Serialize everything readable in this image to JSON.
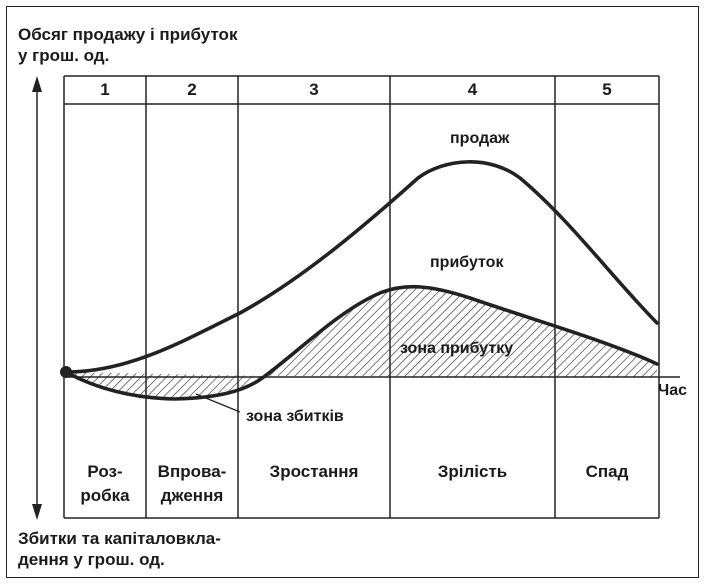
{
  "axes": {
    "y_top_label_line1": "Обсяг продажу і прибуток",
    "y_top_label_line2": "у грош. од.",
    "y_bottom_label_line1": "Збитки та капіталовкла-",
    "y_bottom_label_line2": "дення у грош. од.",
    "x_label": "Час"
  },
  "stages": [
    {
      "number": "1",
      "name_line1": "Роз-",
      "name_line2": "робка"
    },
    {
      "number": "2",
      "name_line1": "Впрова-",
      "name_line2": "дження"
    },
    {
      "number": "3",
      "name_line1": "Зростання",
      "name_line2": ""
    },
    {
      "number": "4",
      "name_line1": "Зрілість",
      "name_line2": ""
    },
    {
      "number": "5",
      "name_line1": "Спад",
      "name_line2": ""
    }
  ],
  "curves": {
    "sales_label": "продаж",
    "profit_label": "прибуток",
    "profit_zone_label": "зона прибутку",
    "loss_zone_label": "зона збитків"
  },
  "colors": {
    "line": "#222222",
    "hatch": "#333333",
    "background": "#ffffff"
  }
}
